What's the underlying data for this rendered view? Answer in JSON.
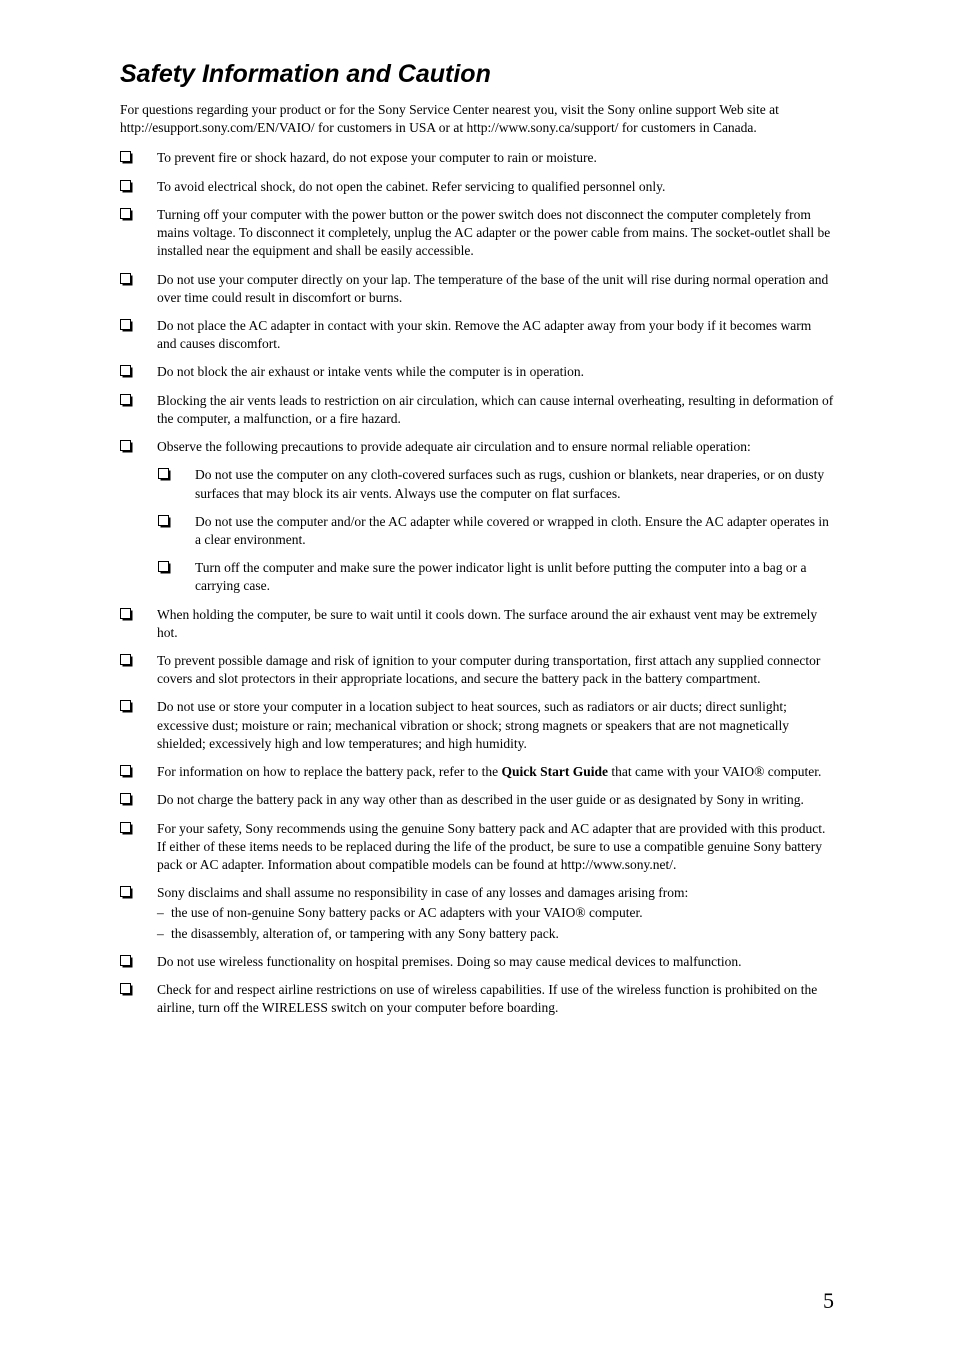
{
  "page_number": "5",
  "colors": {
    "text": "#000000",
    "background": "#ffffff",
    "bullet_stroke": "#000000",
    "bullet_fill": "#ffffff",
    "bullet_shadow": "#000000"
  },
  "typography": {
    "body_font": "Georgia, Times New Roman, serif",
    "title_font": "Arial, Helvetica, sans-serif",
    "body_size_pt": 10,
    "title_size_pt": 19,
    "title_weight": "bold",
    "title_style": "italic"
  },
  "title": "Safety Information and Caution",
  "intro": "For questions regarding your product or for the Sony Service Center nearest you, visit the Sony online support Web site at http://esupport.sony.com/EN/VAIO/ for customers in USA or at http://www.sony.ca/support/ for customers in Canada.",
  "bold_phrase": "Quick Start Guide",
  "items": [
    {
      "text": "To prevent fire or shock hazard, do not expose your computer to rain or moisture."
    },
    {
      "text": "To avoid electrical shock, do not open the cabinet. Refer servicing to qualified personnel only."
    },
    {
      "text": "Turning off your computer with the power button or the power switch does not disconnect the computer completely from mains voltage. To disconnect it completely, unplug the AC adapter or the power cable from mains. The socket-outlet shall be installed near the equipment and shall be easily accessible."
    },
    {
      "text": "Do not use your computer directly on your lap. The temperature of the base of the unit will rise during normal operation and over time could result in discomfort or burns."
    },
    {
      "text": "Do not place the AC adapter in contact with your skin. Remove the AC adapter away from your body if it becomes warm and causes discomfort."
    },
    {
      "text": "Do not block the air exhaust or intake vents while the computer is in operation."
    },
    {
      "text": "Blocking the air vents leads to restriction on air circulation, which can cause internal overheating, resulting in deformation of the computer, a malfunction, or a fire hazard."
    },
    {
      "text": "Observe the following precautions to provide adequate air circulation and to ensure normal reliable operation:",
      "children": [
        {
          "text": "Do not use the computer on any cloth-covered surfaces such as rugs, cushion or blankets, near draperies, or on dusty surfaces that may block its air vents. Always use the computer on flat surfaces."
        },
        {
          "text": "Do not use the computer and/or the AC adapter while covered or wrapped in cloth. Ensure the AC adapter operates in a clear environment."
        },
        {
          "text": "Turn off the computer and make sure the power indicator light is unlit before putting the computer into a bag or a carrying case."
        }
      ]
    },
    {
      "text": "When holding the computer, be sure to wait until it cools down. The surface around the air exhaust vent may be extremely hot."
    },
    {
      "text": "To prevent possible damage and risk of ignition to your computer during transportation, first attach any supplied connector covers and slot protectors in their appropriate locations, and secure the battery pack in the battery compartment."
    },
    {
      "text": "Do not use or store your computer in a location subject to heat sources, such as radiators or air ducts; direct sunlight; excessive dust; moisture or rain; mechanical vibration or shock; strong magnets or speakers that are not magnetically shielded; excessively high and low temperatures; and high humidity."
    },
    {
      "text_before": "For information on how to replace the battery pack, refer to the ",
      "text_bold": "Quick Start Guide",
      "text_after": " that came with your VAIO® computer."
    },
    {
      "text": "Do not charge the battery pack in any way other than as described in the user guide or as designated by Sony in writing."
    },
    {
      "text": "For your safety, Sony recommends using the genuine Sony battery pack and AC adapter that are provided with this product. If either of these items needs to be replaced during the life of the product, be sure to use a compatible genuine Sony battery pack or AC adapter. Information about compatible models can be found at http://www.sony.net/."
    },
    {
      "text": "Sony disclaims and shall assume no responsibility in case of any losses and damages arising from:",
      "dashes": [
        "the use of non-genuine Sony battery packs or AC adapters with your VAIO® computer.",
        "the disassembly, alteration of, or tampering with any Sony battery pack."
      ]
    },
    {
      "text": "Do not use wireless functionality on hospital premises. Doing so may cause medical devices to malfunction."
    },
    {
      "text": "Check for and respect airline restrictions on use of wireless capabilities. If use of the wireless function is prohibited on the airline, turn off the WIRELESS switch on your computer before boarding."
    }
  ]
}
